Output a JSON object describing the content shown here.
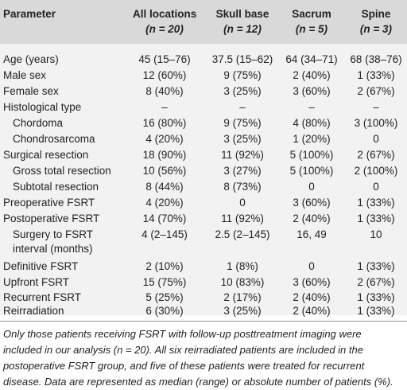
{
  "header": {
    "col0": "Parameter",
    "col1_line1": "All locations",
    "col1_line2": "(n = 20)",
    "col2_line1": "Skull base",
    "col2_line2": "(n = 12)",
    "col3_line1": "Sacrum",
    "col3_line2": "(n = 5)",
    "col4_line1": "Spine",
    "col4_line2": "(n = 3)"
  },
  "rows": [
    {
      "label": "Age (years)",
      "all": "45 (15–76)",
      "skull": "37.5 (15–62)",
      "sacrum": "64 (34–71)",
      "spine": "68 (38–76)"
    },
    {
      "label": "Male sex",
      "all": "12 (60%)",
      "skull": "9 (75%)",
      "sacrum": "2 (40%)",
      "spine": "1 (33%)"
    },
    {
      "label": "Female sex",
      "all": "8 (40%)",
      "skull": "3 (25%)",
      "sacrum": "3 (60%)",
      "spine": "2 (67%)"
    },
    {
      "label": "Histological type",
      "all": "–",
      "skull": "–",
      "sacrum": "–",
      "spine": "–"
    },
    {
      "label": "Chordoma",
      "all": "16 (80%)",
      "skull": "9 (75%)",
      "sacrum": "4 (80%)",
      "spine": "3 (100%)"
    },
    {
      "label": "Chondrosarcoma",
      "all": "4 (20%)",
      "skull": "3 (25%)",
      "sacrum": "1 (20%)",
      "spine": "0"
    },
    {
      "label": "Surgical resection",
      "all": "18 (90%)",
      "skull": "11 (92%)",
      "sacrum": "5 (100%)",
      "spine": "2 (67%)"
    },
    {
      "label": "Gross total resection",
      "all": "10 (56%)",
      "skull": "3 (27%)",
      "sacrum": "5 (100%)",
      "spine": "2 (100%)"
    },
    {
      "label": "Subtotal resection",
      "all": "8 (44%)",
      "skull": "8 (73%)",
      "sacrum": "0",
      "spine": "0"
    },
    {
      "label": "Preoperative FSRT",
      "all": "4 (20%)",
      "skull": "0",
      "sacrum": "3 (60%)",
      "spine": "1 (33%)"
    },
    {
      "label": "Postoperative FSRT",
      "all": "14 (70%)",
      "skull": "11 (92%)",
      "sacrum": "2 (40%)",
      "spine": "1 (33%)"
    },
    {
      "label": "Surgery to FSRT",
      "label2": "interval (months)",
      "all": "4 (2–145)",
      "skull": "2.5 (2–145)",
      "sacrum": "16, 49",
      "spine": "10"
    },
    {
      "label": "Definitive FSRT",
      "all": "2 (10%)",
      "skull": "1 (8%)",
      "sacrum": "0",
      "spine": "1 (33%)"
    },
    {
      "label": "Upfront FSRT",
      "all": "15 (75%)",
      "skull": "10 (83%)",
      "sacrum": "3 (60%)",
      "spine": "2 (67%)"
    },
    {
      "label": "Recurrent FSRT",
      "all": "5 (25%)",
      "skull": "2 (17%)",
      "sacrum": "2 (40%)",
      "spine": "1 (33%)"
    },
    {
      "label": "Reirradiation",
      "all": "6 (30%)",
      "skull": "3 (25%)",
      "sacrum": "2 (40%)",
      "spine": "1 (33%)"
    }
  ],
  "footnote": "Only those patients receiving FSRT with follow-up posttreatment imaging were included in our analysis (n = 20). All six reirradiated patients are included in the postoperative FSRT group, and five of these patients were treated for recurrent disease. Data are represented as median (range) or absolute number of patients (%)."
}
